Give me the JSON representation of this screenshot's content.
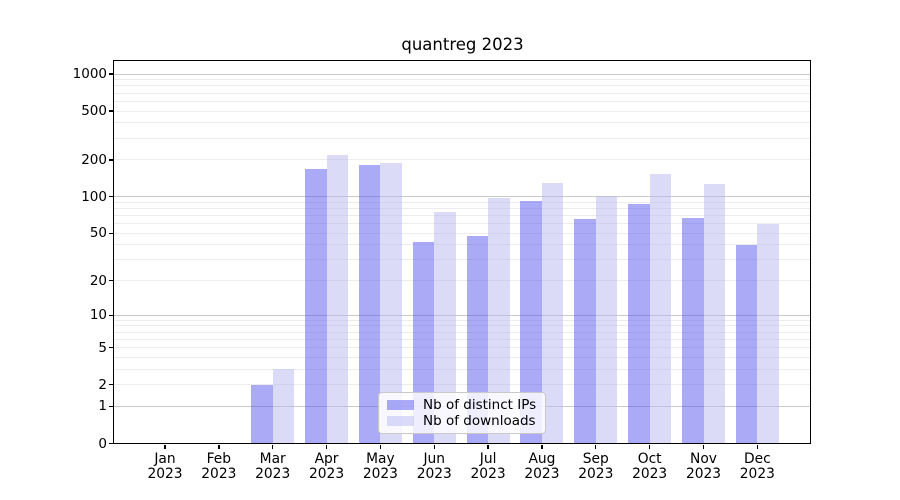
{
  "title": "quantreg 2023",
  "chart_data": {
    "type": "bar",
    "title": "quantreg 2023",
    "categories": [
      "Jan",
      "Feb",
      "Mar",
      "Apr",
      "May",
      "Jun",
      "Jul",
      "Aug",
      "Sep",
      "Oct",
      "Nov",
      "Dec"
    ],
    "x_year": "2023",
    "series": [
      {
        "name": "Nb of distinct IPs",
        "color": "#5555f0",
        "alpha": 0.5,
        "values": [
          0,
          0,
          2,
          170,
          180,
          42,
          47,
          93,
          66,
          87,
          67,
          40
        ]
      },
      {
        "name": "Nb of downloads",
        "color": "#b7b7f2",
        "alpha": 0.5,
        "values": [
          0,
          0,
          3,
          220,
          190,
          75,
          98,
          130,
          101,
          152,
          127,
          60
        ]
      }
    ],
    "yscale": "log1p",
    "yticks": [
      0,
      1,
      2,
      5,
      10,
      20,
      50,
      100,
      200,
      500,
      1000
    ],
    "ylim": [
      0,
      1280
    ],
    "grid": "major and minor horizontal gridlines",
    "legend_position": "inside lower center",
    "xlabel": "",
    "ylabel": ""
  }
}
